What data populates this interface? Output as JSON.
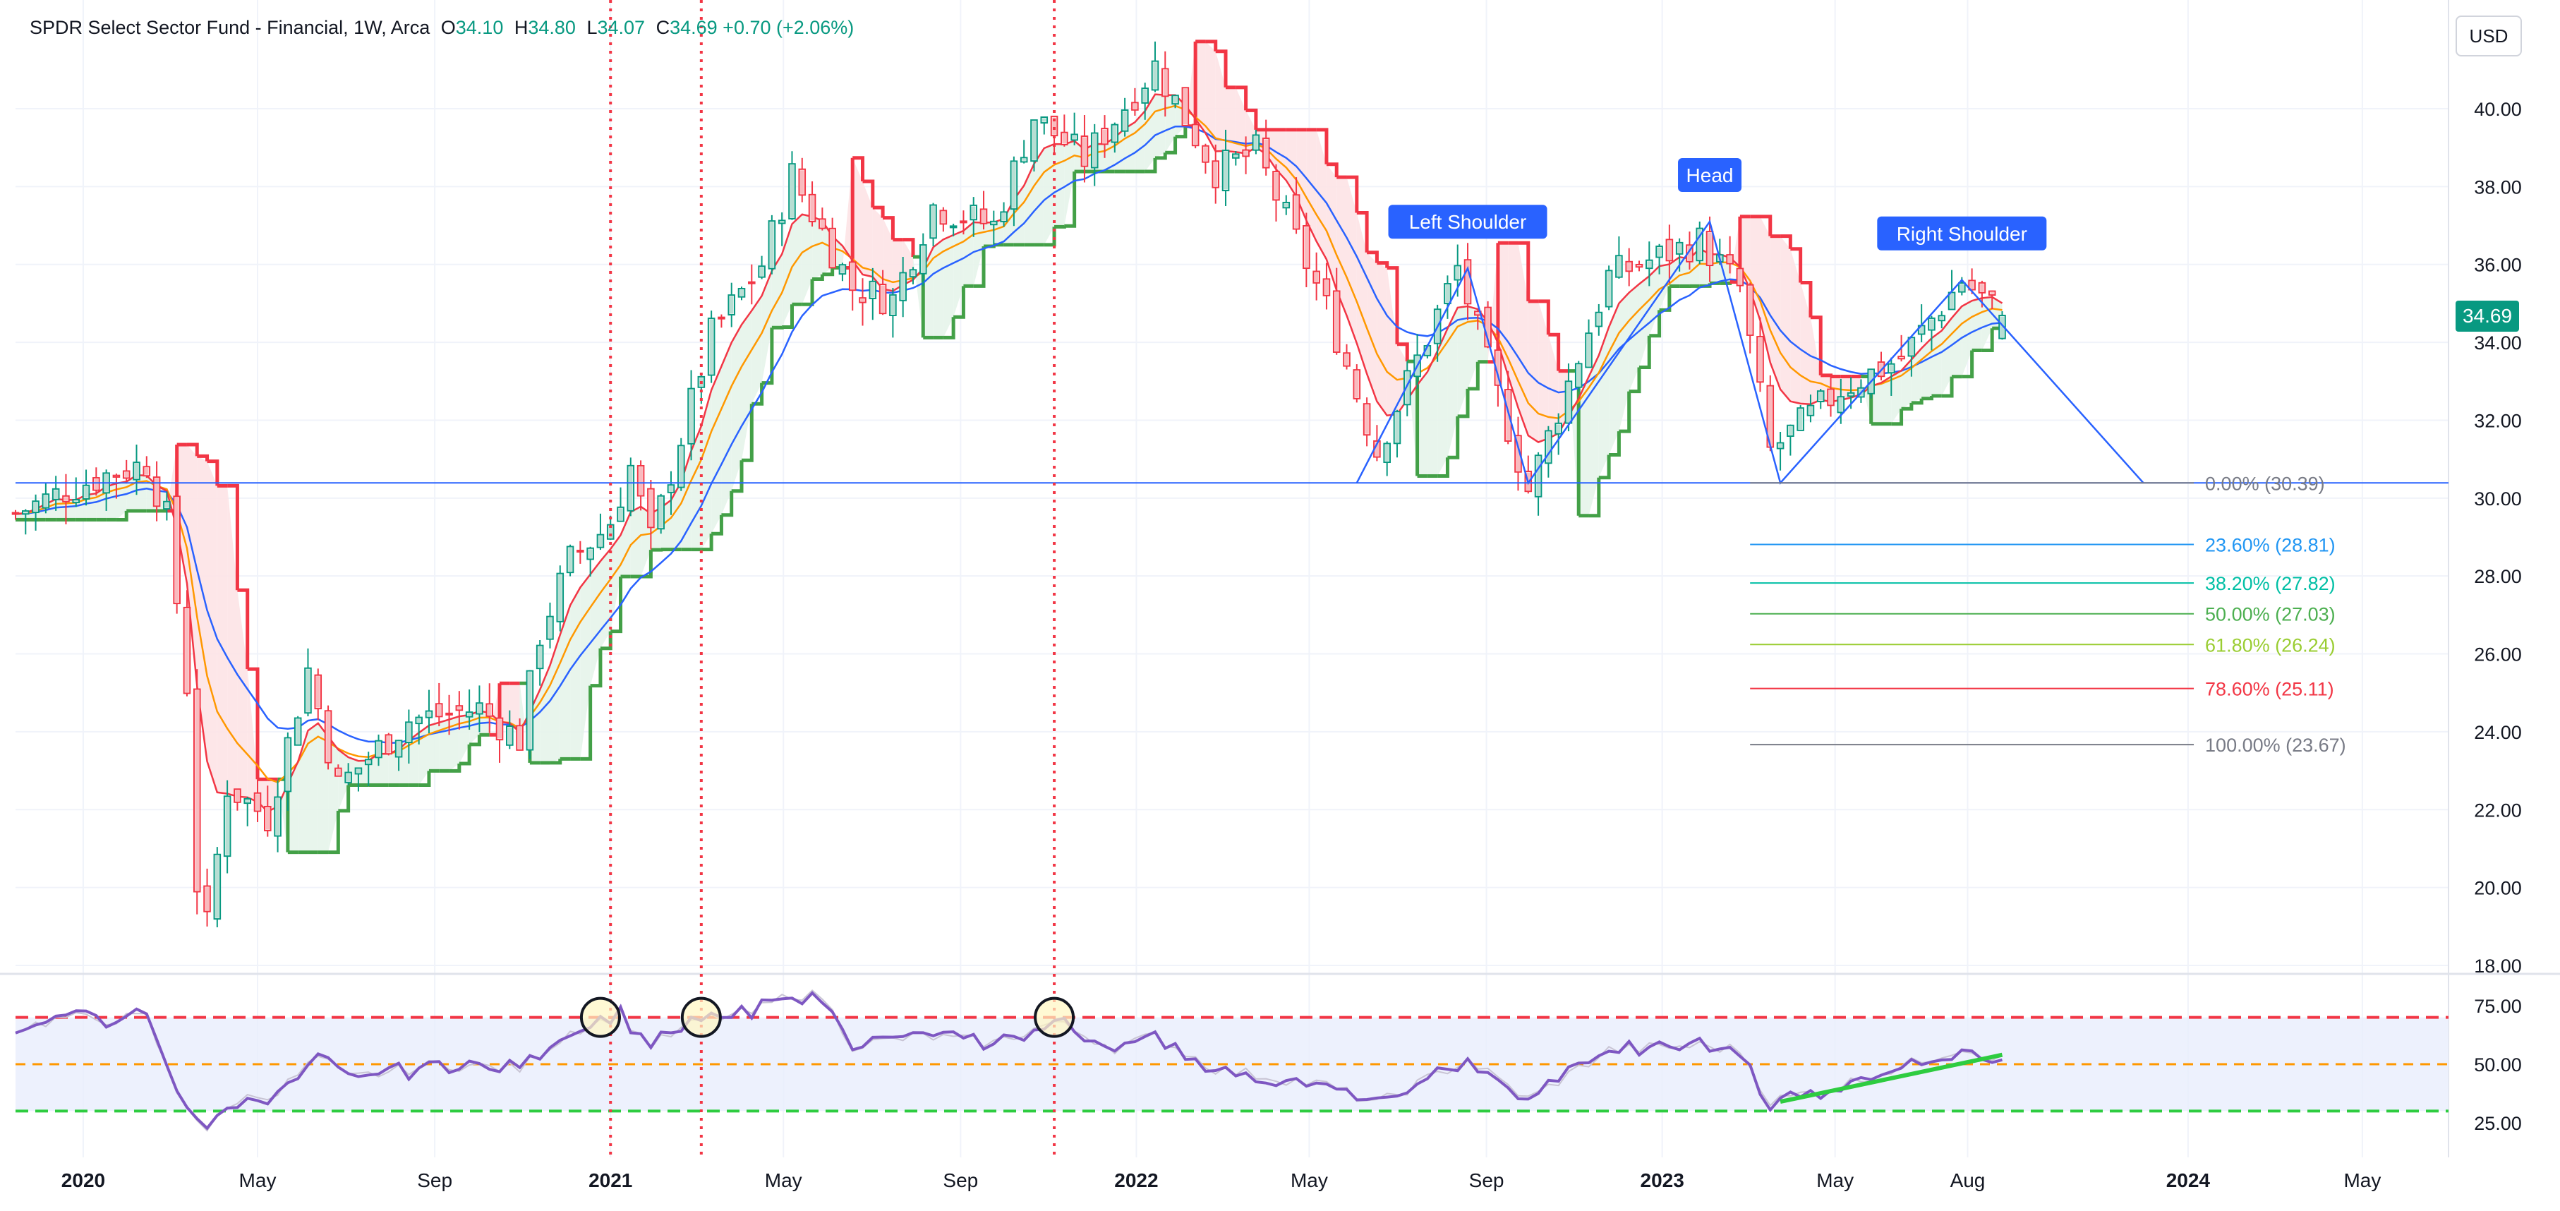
{
  "legend": {
    "title": "SPDR Select Sector Fund - Financial, 1W, Arca",
    "open_label": "O",
    "open": "34.10",
    "high_label": "H",
    "high": "34.80",
    "low_label": "L",
    "low": "34.07",
    "close_label": "C",
    "close": "34.69",
    "change": "+0.70 (+2.06%)"
  },
  "currency": "USD",
  "last_price": "34.69",
  "colors": {
    "up": "#089981",
    "down": "#f23645",
    "ema_fast": "#f23645",
    "ema_mid": "#ff9800",
    "ema_slow": "#2962ff",
    "stop_up": "#43a047",
    "stop_down": "#f23645",
    "rsi": "#7e57c2",
    "fib_line": "#2962ff"
  },
  "chart_data": [
    {
      "type": "candlestick",
      "timeframe": "1W",
      "y_axis": {
        "ticks": [
          18,
          20,
          22,
          24,
          26,
          28,
          30,
          32,
          34,
          36,
          38,
          40
        ],
        "range": [
          17.5,
          42.5
        ]
      },
      "x_axis": {
        "ticks": [
          "2020",
          "May",
          "Sep",
          "2021",
          "May",
          "Sep",
          "2022",
          "May",
          "Sep",
          "2023",
          "May",
          "Aug",
          "2024",
          "May"
        ]
      },
      "price_path": [
        [
          "2019-11-15",
          29.6
        ],
        [
          "2019-12-20",
          30.2
        ],
        [
          "2020-01-17",
          30.6
        ],
        [
          "2020-02-14",
          30.9
        ],
        [
          "2020-02-28",
          29.5
        ],
        [
          "2020-03-13",
          25.2
        ],
        [
          "2020-03-20",
          20.1
        ],
        [
          "2020-03-27",
          19.0
        ],
        [
          "2020-04-10",
          22.6
        ],
        [
          "2020-05-08",
          21.8
        ],
        [
          "2020-06-05",
          25.6
        ],
        [
          "2020-06-26",
          22.6
        ],
        [
          "2020-08-14",
          24.3
        ],
        [
          "2020-10-02",
          24.6
        ],
        [
          "2020-10-30",
          23.8
        ],
        [
          "2020-11-13",
          26.5
        ],
        [
          "2020-12-04",
          28.4
        ],
        [
          "2020-12-31",
          29.3
        ],
        [
          "2021-01-15",
          30.8
        ],
        [
          "2021-01-29",
          28.9
        ],
        [
          "2021-03-12",
          34.2
        ],
        [
          "2021-04-16",
          36.0
        ],
        [
          "2021-05-07",
          38.3
        ],
        [
          "2021-06-18",
          35.4
        ],
        [
          "2021-07-16",
          35.1
        ],
        [
          "2021-08-13",
          37.5
        ],
        [
          "2021-09-24",
          37.0
        ],
        [
          "2021-10-22",
          39.8
        ],
        [
          "2021-11-26",
          38.7
        ],
        [
          "2022-01-14",
          41.1
        ],
        [
          "2022-02-25",
          38.4
        ],
        [
          "2022-03-25",
          38.9
        ],
        [
          "2022-05-13",
          34.9
        ],
        [
          "2022-06-17",
          31.2
        ],
        [
          "2022-08-12",
          35.9
        ],
        [
          "2022-09-30",
          30.2
        ],
        [
          "2022-11-25",
          35.7
        ],
        [
          "2023-01-27",
          36.6
        ],
        [
          "2023-02-24",
          35.4
        ],
        [
          "2023-03-17",
          31.2
        ],
        [
          "2023-05-05",
          32.8
        ],
        [
          "2023-06-16",
          33.6
        ],
        [
          "2023-07-28",
          35.6
        ],
        [
          "2023-08-25",
          34.69
        ]
      ],
      "last": {
        "open": 34.1,
        "high": 34.8,
        "low": 34.07,
        "close": 34.69
      },
      "horizontal_line": 30.39,
      "vertical_markers": [
        "2021-01-01",
        "2021-03-05",
        "2021-11-05"
      ],
      "annotations": [
        {
          "text": "Left Shoulder",
          "date": "2022-08-19",
          "price": 35.9
        },
        {
          "text": "Head",
          "date": "2023-02-03",
          "price": 37.1
        },
        {
          "text": "Right Shoulder",
          "date": "2023-07-28",
          "price": 35.6
        }
      ],
      "pattern_path": [
        [
          "2022-06-03",
          30.39
        ],
        [
          "2022-08-19",
          35.9
        ],
        [
          "2022-09-30",
          30.39
        ],
        [
          "2023-02-03",
          37.1
        ],
        [
          "2023-03-24",
          30.39
        ],
        [
          "2023-07-28",
          35.6
        ],
        [
          "2023-12-01",
          30.39
        ]
      ],
      "fibonacci": [
        {
          "label": "0.00% (30.39)",
          "price": 30.39,
          "color": "#787b86"
        },
        {
          "label": "23.60% (28.81)",
          "price": 28.81,
          "color": "#2196f3"
        },
        {
          "label": "38.20% (27.82)",
          "price": 27.82,
          "color": "#00bfa5"
        },
        {
          "label": "50.00% (27.03)",
          "price": 27.03,
          "color": "#4caf50"
        },
        {
          "label": "61.80% (26.24)",
          "price": 26.24,
          "color": "#9acd32"
        },
        {
          "label": "78.60% (25.11)",
          "price": 25.11,
          "color": "#f23645"
        },
        {
          "label": "100.00% (23.67)",
          "price": 23.67,
          "color": "#787b86"
        }
      ]
    },
    {
      "type": "line",
      "name": "RSI",
      "y_axis": {
        "ticks": [
          25.0,
          50.0,
          75.0
        ],
        "range": [
          17,
          83
        ]
      },
      "levels": {
        "upper": 70,
        "middle": 50,
        "lower": 30
      },
      "path": [
        [
          "2019-11-15",
          65
        ],
        [
          "2019-12-20",
          70
        ],
        [
          "2020-01-17",
          69
        ],
        [
          "2020-02-14",
          70
        ],
        [
          "2020-03-06",
          38
        ],
        [
          "2020-03-27",
          22
        ],
        [
          "2020-04-17",
          35
        ],
        [
          "2020-05-15",
          38
        ],
        [
          "2020-06-12",
          53
        ],
        [
          "2020-07-03",
          44
        ],
        [
          "2020-09-04",
          50
        ],
        [
          "2020-10-30",
          48
        ],
        [
          "2020-12-04",
          64
        ],
        [
          "2021-01-08",
          71
        ],
        [
          "2021-01-29",
          58
        ],
        [
          "2021-03-05",
          69
        ],
        [
          "2021-04-09",
          72
        ],
        [
          "2021-05-07",
          80
        ],
        [
          "2021-05-28",
          79
        ],
        [
          "2021-06-18",
          58
        ],
        [
          "2021-08-06",
          62
        ],
        [
          "2021-09-24",
          59
        ],
        [
          "2021-11-05",
          68
        ],
        [
          "2021-12-17",
          57
        ],
        [
          "2022-01-14",
          62
        ],
        [
          "2022-02-25",
          48
        ],
        [
          "2022-05-13",
          41
        ],
        [
          "2022-06-17",
          33
        ],
        [
          "2022-08-19",
          52
        ],
        [
          "2022-09-30",
          35
        ],
        [
          "2022-11-25",
          56
        ],
        [
          "2023-01-27",
          58
        ],
        [
          "2023-02-24",
          56
        ],
        [
          "2023-03-17",
          34
        ],
        [
          "2023-05-05",
          41
        ],
        [
          "2023-07-28",
          57
        ],
        [
          "2023-08-25",
          52
        ]
      ],
      "trendline": [
        [
          "2023-03-24",
          34
        ],
        [
          "2023-08-25",
          54
        ]
      ],
      "circled_dates": [
        "2020-12-25",
        "2021-03-05",
        "2021-11-05"
      ]
    }
  ]
}
